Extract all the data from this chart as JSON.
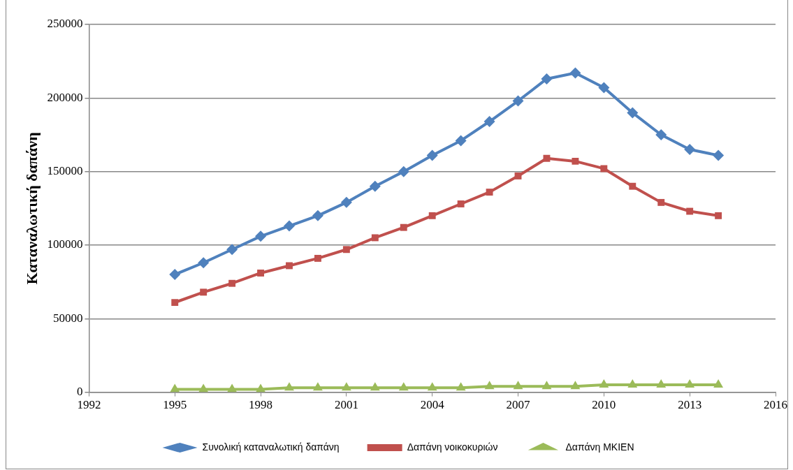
{
  "chart_data": {
    "type": "line",
    "ylabel": "Καταναλωτική δαπάνη",
    "x": [
      1995,
      1996,
      1997,
      1998,
      1999,
      2000,
      2001,
      2002,
      2003,
      2004,
      2005,
      2006,
      2007,
      2008,
      2009,
      2010,
      2011,
      2012,
      2013,
      2014
    ],
    "series": [
      {
        "name": "Συνολική καταναλωτική δαπάνη",
        "color": "#4f81bd",
        "marker": "diamond",
        "values": [
          80000,
          88000,
          97000,
          106000,
          113000,
          120000,
          129000,
          140000,
          150000,
          161000,
          171000,
          184000,
          198000,
          213000,
          217000,
          207000,
          190000,
          175000,
          165000,
          161000
        ]
      },
      {
        "name": "Δαπάνη νοικοκυριών",
        "color": "#c0504d",
        "marker": "square",
        "values": [
          61000,
          68000,
          74000,
          81000,
          86000,
          91000,
          97000,
          105000,
          112000,
          120000,
          128000,
          136000,
          147000,
          159000,
          157000,
          152000,
          140000,
          129000,
          123000,
          120000
        ]
      },
      {
        "name": "Δαπάνη ΜΚΙΕΝ",
        "color": "#9bbb59",
        "marker": "triangle",
        "values": [
          2000,
          2000,
          2000,
          2000,
          3000,
          3000,
          3000,
          3000,
          3000,
          3000,
          3000,
          4000,
          4000,
          4000,
          4000,
          5000,
          5000,
          5000,
          5000,
          5000
        ]
      }
    ],
    "xlim": [
      1992,
      2016
    ],
    "xticks": [
      1992,
      1995,
      1998,
      2001,
      2004,
      2007,
      2010,
      2013,
      2016
    ],
    "ylim": [
      0,
      250000
    ],
    "yticks": [
      0,
      50000,
      100000,
      150000,
      200000,
      250000
    ],
    "grid": "y",
    "legend": "bottom",
    "line_style": "solid"
  }
}
